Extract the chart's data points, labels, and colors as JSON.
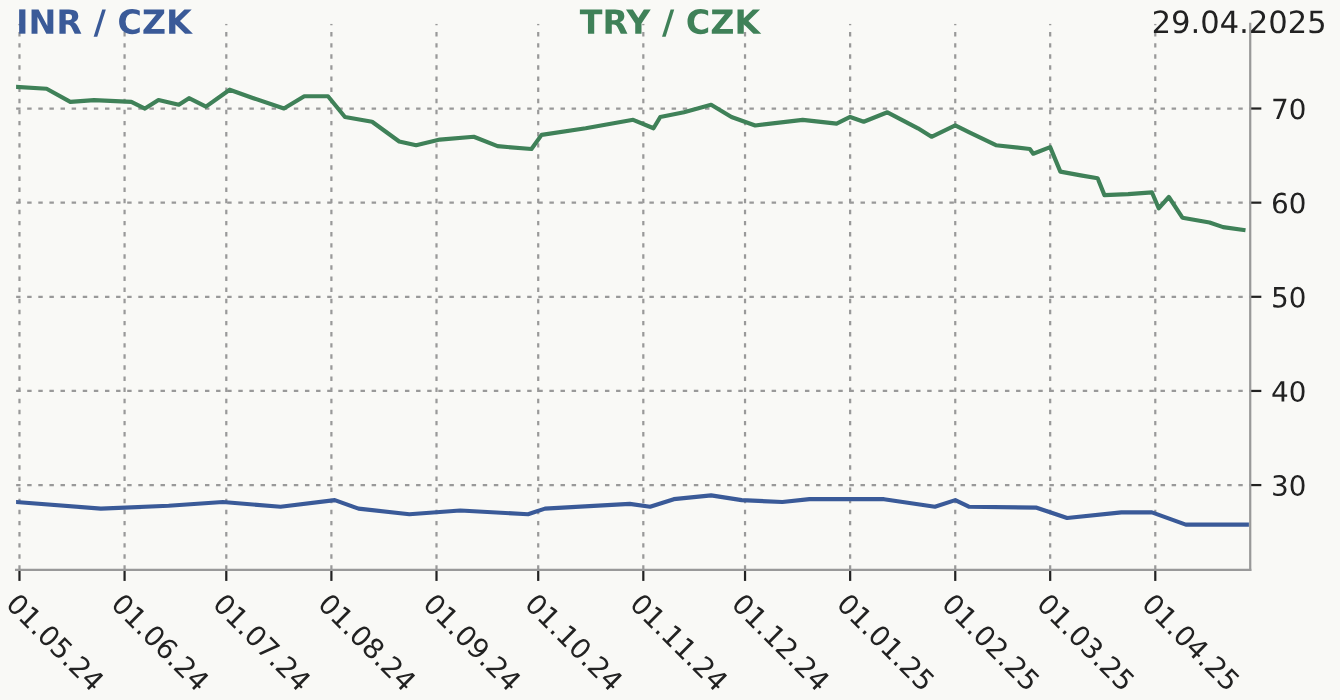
{
  "chart_data": {
    "type": "line",
    "annotations": [
      "29.04.2025"
    ],
    "xlim": [
      "2024-04-30",
      "2025-04-29"
    ],
    "xticks": [
      {
        "value": "2024-05-01",
        "label": "01.05.24"
      },
      {
        "value": "2024-06-01",
        "label": "01.06.24"
      },
      {
        "value": "2024-07-01",
        "label": "01.07.24"
      },
      {
        "value": "2024-08-01",
        "label": "01.08.24"
      },
      {
        "value": "2024-09-01",
        "label": "01.09.24"
      },
      {
        "value": "2024-10-01",
        "label": "01.10.24"
      },
      {
        "value": "2024-11-01",
        "label": "01.11.24"
      },
      {
        "value": "2024-12-01",
        "label": "01.12.24"
      },
      {
        "value": "2025-01-01",
        "label": "01.01.25"
      },
      {
        "value": "2025-02-01",
        "label": "01.02.25"
      },
      {
        "value": "2025-03-01",
        "label": "01.03.25"
      },
      {
        "value": "2025-04-01",
        "label": "01.04.25"
      }
    ],
    "ylim": [
      21,
      79
    ],
    "yticks": [
      30,
      40,
      50,
      60,
      70
    ],
    "grid": true,
    "legend": false,
    "marker": "none",
    "line_style": "solid",
    "series": [
      {
        "name": "INR / CZK",
        "color": "#3a5a98",
        "x": [
          "2024-04-30",
          "2024-05-25",
          "2024-06-14",
          "2024-06-30",
          "2024-07-17",
          "2024-08-02",
          "2024-08-09",
          "2024-08-24",
          "2024-09-08",
          "2024-09-28",
          "2024-10-03",
          "2024-10-28",
          "2024-11-03",
          "2024-11-10",
          "2024-11-21",
          "2024-11-30",
          "2024-12-12",
          "2024-12-20",
          "2025-01-11",
          "2025-01-26",
          "2025-02-01",
          "2025-02-05",
          "2025-02-25",
          "2025-03-06",
          "2025-03-22",
          "2025-03-31",
          "2025-04-10",
          "2025-04-28"
        ],
        "values": [
          28.2,
          27.5,
          27.8,
          28.2,
          27.7,
          28.4,
          27.5,
          26.9,
          27.3,
          26.9,
          27.5,
          28.0,
          27.7,
          28.5,
          28.9,
          28.4,
          28.2,
          28.5,
          28.5,
          27.7,
          28.4,
          27.7,
          27.6,
          26.5,
          27.1,
          27.1,
          25.8,
          25.8
        ]
      },
      {
        "name": "TRY / CZK",
        "color": "#3f8158",
        "x": [
          "2024-04-30",
          "2024-05-09",
          "2024-05-16",
          "2024-05-23",
          "2024-06-03",
          "2024-06-07",
          "2024-06-11",
          "2024-06-17",
          "2024-06-20",
          "2024-06-25",
          "2024-07-02",
          "2024-07-09",
          "2024-07-18",
          "2024-07-24",
          "2024-07-31",
          "2024-08-05",
          "2024-08-13",
          "2024-08-21",
          "2024-08-26",
          "2024-09-02",
          "2024-09-12",
          "2024-09-19",
          "2024-09-29",
          "2024-10-02",
          "2024-10-15",
          "2024-10-29",
          "2024-11-04",
          "2024-11-06",
          "2024-11-13",
          "2024-11-21",
          "2024-11-27",
          "2024-12-04",
          "2024-12-18",
          "2024-12-28",
          "2025-01-01",
          "2025-01-05",
          "2025-01-12",
          "2025-01-21",
          "2025-01-25",
          "2025-02-01",
          "2025-02-05",
          "2025-02-13",
          "2025-02-23",
          "2025-02-24",
          "2025-03-01",
          "2025-03-04",
          "2025-03-10",
          "2025-03-15",
          "2025-03-17",
          "2025-03-24",
          "2025-03-31",
          "2025-04-02",
          "2025-04-05",
          "2025-04-09",
          "2025-04-17",
          "2025-04-21",
          "2025-04-27"
        ],
        "values": [
          72.3,
          72.1,
          70.7,
          70.9,
          70.7,
          70.0,
          70.9,
          70.4,
          71.1,
          70.2,
          72.0,
          71.1,
          70.0,
          71.3,
          71.3,
          69.1,
          68.6,
          66.5,
          66.1,
          66.7,
          67.0,
          66.0,
          65.7,
          67.2,
          67.9,
          68.8,
          67.9,
          69.1,
          69.6,
          70.4,
          69.1,
          68.2,
          68.8,
          68.4,
          69.1,
          68.6,
          69.6,
          67.9,
          67.0,
          68.2,
          67.5,
          66.1,
          65.7,
          65.2,
          65.9,
          63.3,
          62.9,
          62.6,
          60.8,
          60.9,
          61.1,
          59.4,
          60.6,
          58.4,
          57.9,
          57.4,
          57.1
        ]
      }
    ]
  }
}
